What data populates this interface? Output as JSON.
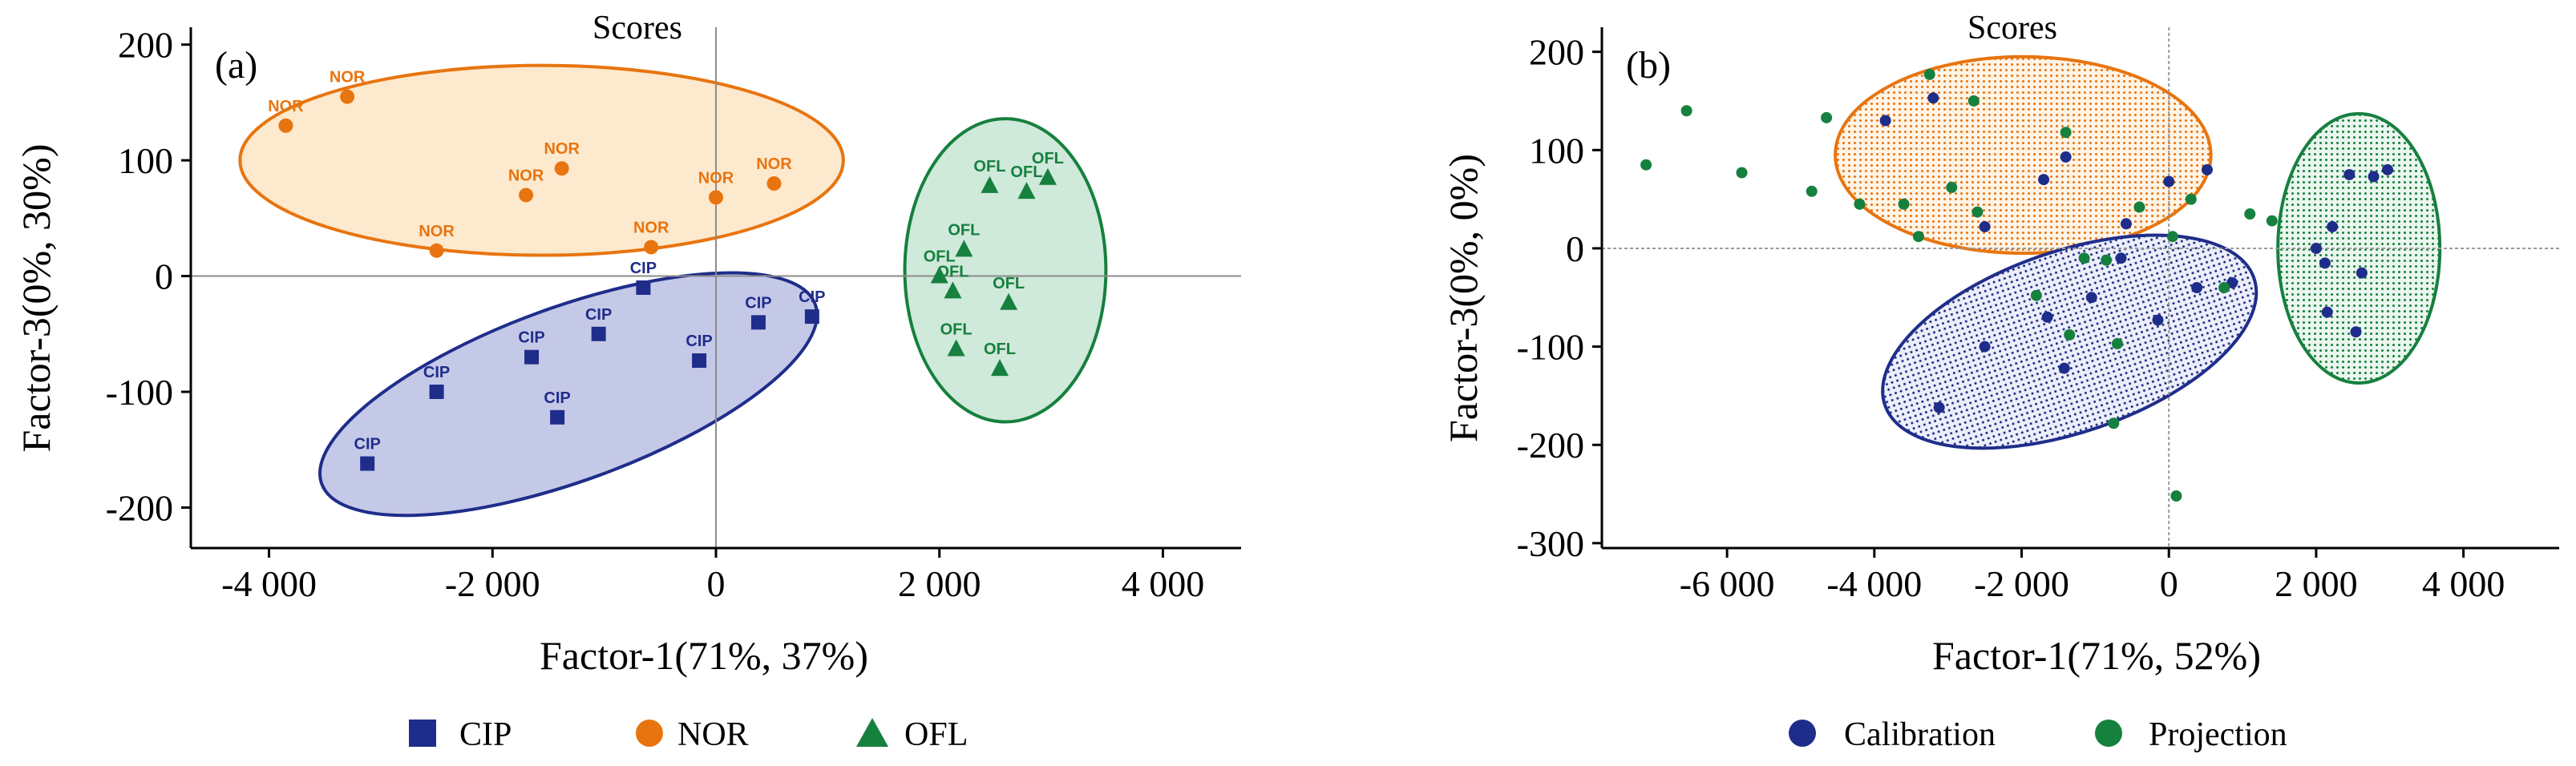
{
  "colors": {
    "CIP": "#1f2d8a",
    "NOR": "#e8740f",
    "OFL": "#16803e",
    "Calibration": "#1f2d8a",
    "Projection": "#16803e",
    "axis": "#000000",
    "zero_line": "#9a9a9a"
  },
  "legend_icons": {
    "CIP": "square-marker-icon",
    "NOR": "circle-marker-icon",
    "OFL": "triangle-marker-icon",
    "Calibration": "circle-marker-icon",
    "Projection": "circle-marker-icon"
  },
  "chart_data": [
    {
      "type": "scatter",
      "panel_label": "(a)",
      "title": "Scores",
      "xlabel": "Factor-1(71%, 37%)",
      "ylabel": "Factor-3(0%, 30%)",
      "xlim": [
        -4700,
        4700
      ],
      "ylim": [
        -235,
        215
      ],
      "xticks": [
        -4000,
        -2000,
        0,
        2000,
        4000
      ],
      "xtick_labels": [
        "-4 000",
        "-2 000",
        "0",
        "2 000",
        "4 000"
      ],
      "yticks": [
        -200,
        -100,
        0,
        100,
        200
      ],
      "ytick_labels": [
        "-200",
        "-100",
        "0",
        "100",
        "200"
      ],
      "grid": false,
      "zero_lines": true,
      "legend_position": "bottom",
      "series": [
        {
          "name": "CIP",
          "marker": "square",
          "points": [
            {
              "x": -3120,
              "y": -162,
              "label": "CIP"
            },
            {
              "x": -2500,
              "y": -100,
              "label": "CIP"
            },
            {
              "x": -1650,
              "y": -70,
              "label": "CIP"
            },
            {
              "x": -1420,
              "y": -122,
              "label": "CIP"
            },
            {
              "x": -1050,
              "y": -50,
              "label": "CIP"
            },
            {
              "x": -650,
              "y": -10,
              "label": "CIP"
            },
            {
              "x": -150,
              "y": -73,
              "label": "CIP"
            },
            {
              "x": 380,
              "y": -40,
              "label": "CIP"
            },
            {
              "x": 860,
              "y": -35,
              "label": "CIP"
            }
          ]
        },
        {
          "name": "NOR",
          "marker": "circle",
          "points": [
            {
              "x": -3850,
              "y": 130,
              "label": "NOR"
            },
            {
              "x": -3300,
              "y": 155,
              "label": "NOR"
            },
            {
              "x": -2500,
              "y": 22,
              "label": "NOR"
            },
            {
              "x": -1700,
              "y": 70,
              "label": "NOR"
            },
            {
              "x": -1380,
              "y": 93,
              "label": "NOR"
            },
            {
              "x": -580,
              "y": 25,
              "label": "NOR"
            },
            {
              "x": 0,
              "y": 68,
              "label": "NOR"
            },
            {
              "x": 520,
              "y": 80,
              "label": "NOR"
            }
          ]
        },
        {
          "name": "OFL",
          "marker": "triangle",
          "points": [
            {
              "x": 2450,
              "y": 78,
              "label": "OFL"
            },
            {
              "x": 2780,
              "y": 73,
              "label": "OFL"
            },
            {
              "x": 2970,
              "y": 85,
              "label": "OFL"
            },
            {
              "x": 2220,
              "y": 23,
              "label": "OFL"
            },
            {
              "x": 2000,
              "y": 0,
              "label": "OFL"
            },
            {
              "x": 2120,
              "y": -13,
              "label": "OFL"
            },
            {
              "x": 2620,
              "y": -23,
              "label": "OFL"
            },
            {
              "x": 2150,
              "y": -63,
              "label": "OFL"
            },
            {
              "x": 2540,
              "y": -80,
              "label": "OFL"
            }
          ]
        }
      ],
      "ellipses": [
        {
          "group": "NOR",
          "cx": -1560,
          "cy": 100,
          "rx": 2700,
          "ry": 82,
          "angle": 0
        },
        {
          "group": "CIP",
          "cx": -1320,
          "cy": -102,
          "rx": 2350,
          "ry": 75,
          "angle": 20
        },
        {
          "group": "OFL",
          "cx": 2590,
          "cy": 5,
          "rx": 900,
          "ry": 131,
          "angle": 0
        }
      ]
    },
    {
      "type": "scatter",
      "panel_label": "(b)",
      "title": "Scores",
      "xlabel": "Factor-1(71%, 52%)",
      "ylabel": "Factor-3(0%, 0%)",
      "xlim": [
        -7700,
        5300
      ],
      "ylim": [
        -305,
        225
      ],
      "xticks": [
        -6000,
        -4000,
        -2000,
        0,
        2000,
        4000
      ],
      "xtick_labels": [
        "-6 000",
        "-4 000",
        "-2 000",
        "0",
        "2 000",
        "4 000"
      ],
      "yticks": [
        -300,
        -200,
        -100,
        0,
        100,
        200
      ],
      "ytick_labels": [
        "-300",
        "-200",
        "-100",
        "0",
        "100",
        "200"
      ],
      "grid": false,
      "zero_lines": true,
      "legend_position": "bottom",
      "series": [
        {
          "name": "Calibration",
          "marker": "circle",
          "points": [
            {
              "x": -3200,
              "y": 153
            },
            {
              "x": -3850,
              "y": 130
            },
            {
              "x": -1400,
              "y": 93
            },
            {
              "x": -1700,
              "y": 70
            },
            {
              "x": 0,
              "y": 68
            },
            {
              "x": 520,
              "y": 80
            },
            {
              "x": -580,
              "y": 25
            },
            {
              "x": -2500,
              "y": 22
            },
            {
              "x": -1650,
              "y": -70
            },
            {
              "x": -1050,
              "y": -50
            },
            {
              "x": -650,
              "y": -10
            },
            {
              "x": -150,
              "y": -73
            },
            {
              "x": 380,
              "y": -40
            },
            {
              "x": 860,
              "y": -35
            },
            {
              "x": -2500,
              "y": -100
            },
            {
              "x": -1420,
              "y": -122
            },
            {
              "x": -3120,
              "y": -162
            },
            {
              "x": 2450,
              "y": 75
            },
            {
              "x": 2780,
              "y": 73
            },
            {
              "x": 2970,
              "y": 80
            },
            {
              "x": 2220,
              "y": 22
            },
            {
              "x": 2000,
              "y": 0
            },
            {
              "x": 2120,
              "y": -15
            },
            {
              "x": 2620,
              "y": -25
            },
            {
              "x": 2150,
              "y": -65
            },
            {
              "x": 2540,
              "y": -85
            }
          ]
        },
        {
          "name": "Projection",
          "marker": "circle",
          "points": [
            {
              "x": -7100,
              "y": 85
            },
            {
              "x": -6550,
              "y": 140
            },
            {
              "x": -5800,
              "y": 77
            },
            {
              "x": -4650,
              "y": 133
            },
            {
              "x": -4850,
              "y": 58
            },
            {
              "x": -4200,
              "y": 45
            },
            {
              "x": -3600,
              "y": 45
            },
            {
              "x": -3250,
              "y": 177
            },
            {
              "x": -2950,
              "y": 62
            },
            {
              "x": -2650,
              "y": 150
            },
            {
              "x": -2600,
              "y": 37
            },
            {
              "x": -3400,
              "y": 12
            },
            {
              "x": -1400,
              "y": 118
            },
            {
              "x": -400,
              "y": 42
            },
            {
              "x": 300,
              "y": 50
            },
            {
              "x": 1100,
              "y": 35
            },
            {
              "x": 1400,
              "y": 28
            },
            {
              "x": 50,
              "y": 12
            },
            {
              "x": -850,
              "y": -12
            },
            {
              "x": -1800,
              "y": -48
            },
            {
              "x": -1350,
              "y": -88
            },
            {
              "x": -1150,
              "y": -10
            },
            {
              "x": -700,
              "y": -97
            },
            {
              "x": 750,
              "y": -40
            },
            {
              "x": -750,
              "y": -178
            },
            {
              "x": 100,
              "y": -252
            }
          ]
        }
      ],
      "ellipses": [
        {
          "group": "Calibration",
          "cx": -1980,
          "cy": 95,
          "rx": 2550,
          "ry": 100,
          "angle": 0
        },
        {
          "group": "Calibration",
          "cx": -1350,
          "cy": -95,
          "rx": 2650,
          "ry": 92,
          "angle": 19
        },
        {
          "group": "Projection",
          "cx": 2580,
          "cy": 0,
          "rx": 1100,
          "ry": 137,
          "angle": 0
        }
      ]
    }
  ]
}
